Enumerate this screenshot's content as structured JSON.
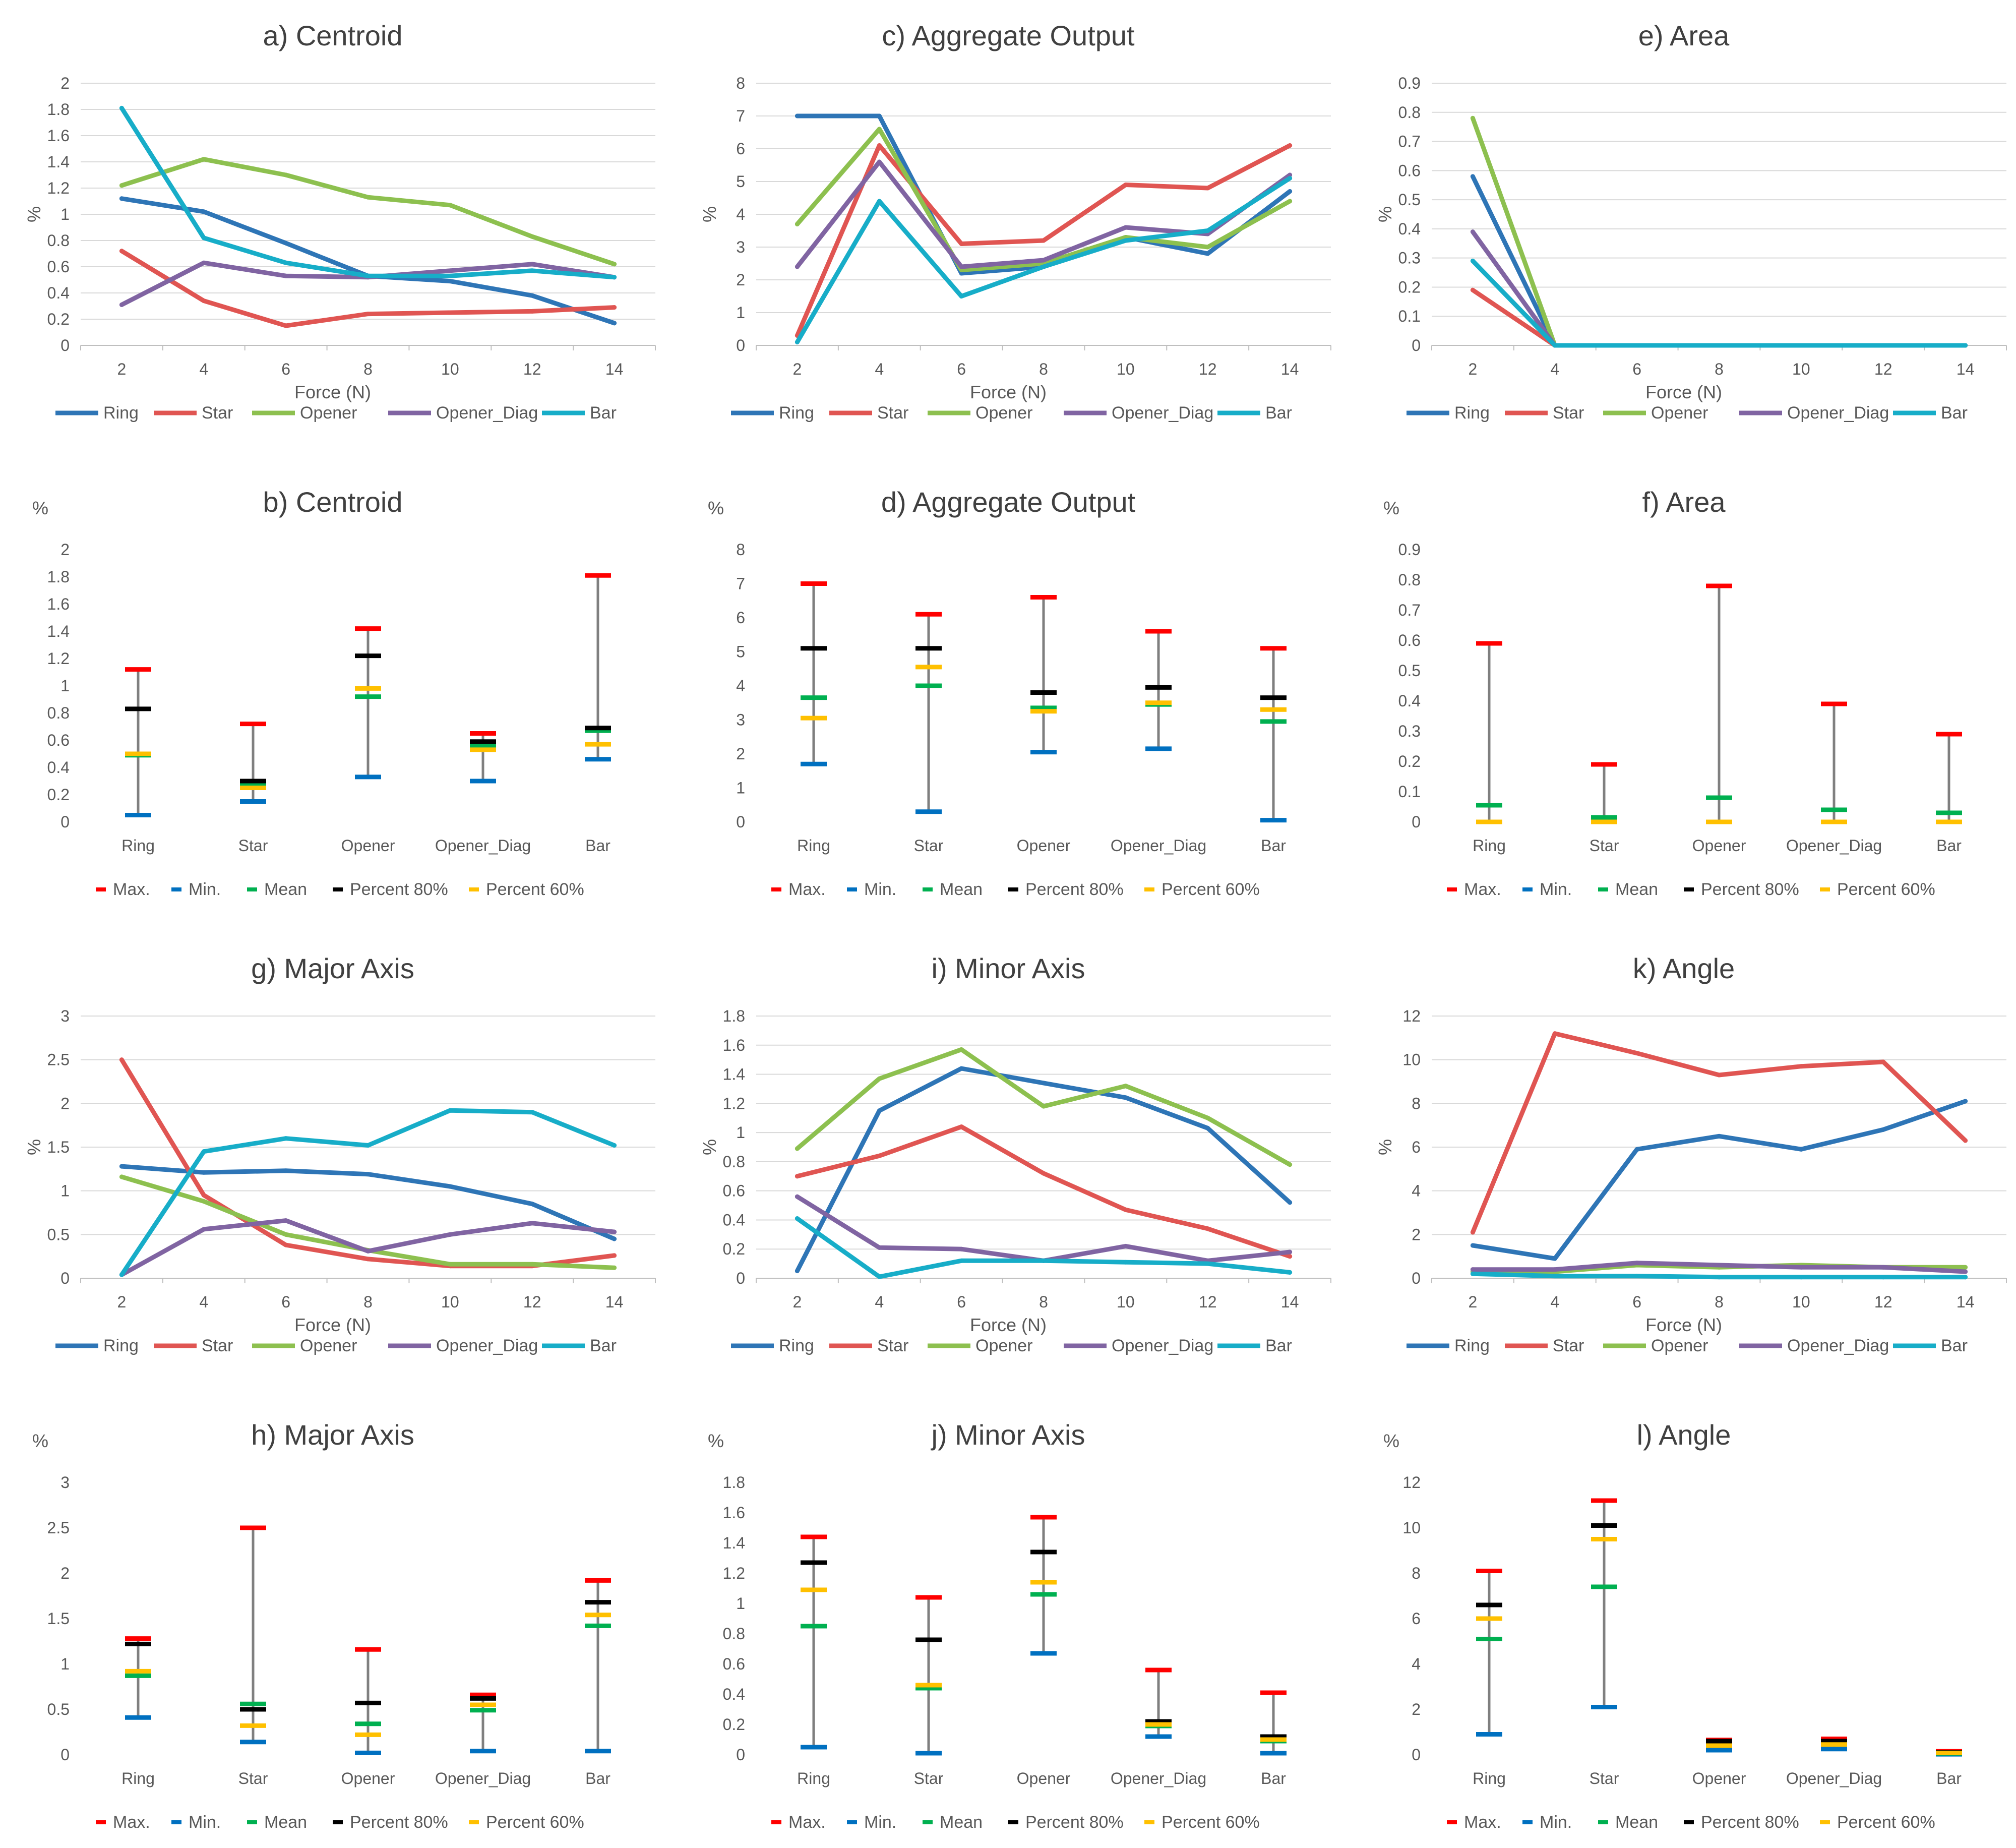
{
  "chart_data": [
    {
      "type": "line",
      "title": "a) Centroid",
      "xlabel": "Force (N)",
      "ylabel": "%",
      "ylim": [
        0,
        2
      ],
      "yticks": [
        "0",
        "0.2",
        "0.4",
        "0.6",
        "0.8",
        "1",
        "1.2",
        "1.4",
        "1.6",
        "1.8",
        "2"
      ],
      "categories": [
        "2",
        "4",
        "6",
        "8",
        "10",
        "12",
        "14"
      ],
      "grid": true,
      "legend": "bottom",
      "series": [
        {
          "name": "Ring",
          "color": "#2e75b6",
          "values": [
            1.12,
            1.02,
            0.78,
            0.53,
            0.49,
            0.38,
            0.17
          ]
        },
        {
          "name": "Star",
          "color": "#e05552",
          "values": [
            0.72,
            0.34,
            0.15,
            0.24,
            0.25,
            0.26,
            0.29
          ]
        },
        {
          "name": "Opener",
          "color": "#8dc04f",
          "values": [
            1.22,
            1.42,
            1.3,
            1.13,
            1.07,
            0.83,
            0.62
          ]
        },
        {
          "name": "Opener_Diag",
          "color": "#8064a2",
          "values": [
            0.31,
            0.63,
            0.53,
            0.52,
            0.57,
            0.62,
            0.52
          ]
        },
        {
          "name": "Bar",
          "color": "#17adc8",
          "values": [
            1.81,
            0.82,
            0.63,
            0.53,
            0.53,
            0.57,
            0.52
          ]
        }
      ]
    },
    {
      "type": "line",
      "title": "c) Aggregate Output",
      "xlabel": "Force (N)",
      "ylabel": "%",
      "ylim": [
        0,
        8
      ],
      "yticks": [
        "0",
        "1",
        "2",
        "3",
        "4",
        "5",
        "6",
        "7",
        "8"
      ],
      "categories": [
        "2",
        "4",
        "6",
        "8",
        "10",
        "12",
        "14"
      ],
      "grid": true,
      "legend": "bottom",
      "series": [
        {
          "name": "Ring",
          "color": "#2e75b6",
          "values": [
            7,
            7,
            2.2,
            2.4,
            3.3,
            2.8,
            4.7
          ]
        },
        {
          "name": "Star",
          "color": "#e05552",
          "values": [
            0.3,
            6.1,
            3.1,
            3.2,
            4.9,
            4.8,
            6.1
          ]
        },
        {
          "name": "Opener",
          "color": "#8dc04f",
          "values": [
            3.7,
            6.6,
            2.3,
            2.5,
            3.3,
            3.0,
            4.4
          ]
        },
        {
          "name": "Opener_Diag",
          "color": "#8064a2",
          "values": [
            2.4,
            5.6,
            2.4,
            2.6,
            3.6,
            3.4,
            5.2
          ]
        },
        {
          "name": "Bar",
          "color": "#17adc8",
          "values": [
            0.1,
            4.4,
            1.5,
            2.4,
            3.2,
            3.5,
            5.1
          ]
        }
      ]
    },
    {
      "type": "line",
      "title": "e) Area",
      "xlabel": "Force (N)",
      "ylabel": "%",
      "ylim": [
        0,
        0.9
      ],
      "yticks": [
        "0",
        "0.1",
        "0.2",
        "0.3",
        "0.4",
        "0.5",
        "0.6",
        "0.7",
        "0.8",
        "0.9"
      ],
      "categories": [
        "2",
        "4",
        "6",
        "8",
        "10",
        "12",
        "14"
      ],
      "grid": true,
      "legend": "bottom",
      "series": [
        {
          "name": "Ring",
          "color": "#2e75b6",
          "values": [
            0.58,
            0,
            0,
            0,
            0,
            0,
            0
          ]
        },
        {
          "name": "Star",
          "color": "#e05552",
          "values": [
            0.19,
            0,
            0,
            0,
            0,
            0,
            0
          ]
        },
        {
          "name": "Opener",
          "color": "#8dc04f",
          "values": [
            0.78,
            0,
            0,
            0,
            0,
            0,
            0
          ]
        },
        {
          "name": "Opener_Diag",
          "color": "#8064a2",
          "values": [
            0.39,
            0,
            0,
            0,
            0,
            0,
            0
          ]
        },
        {
          "name": "Bar",
          "color": "#17adc8",
          "values": [
            0.29,
            0,
            0,
            0,
            0,
            0,
            0
          ]
        }
      ]
    },
    {
      "type": "stock",
      "title": "b) Centroid",
      "ylabel": "%",
      "ylim": [
        0,
        2
      ],
      "yticks": [
        "0",
        "0.2",
        "0.4",
        "0.6",
        "0.8",
        "1",
        "1.2",
        "1.4",
        "1.6",
        "1.8",
        "2"
      ],
      "categories": [
        "Ring",
        "Star",
        "Opener",
        "Opener_Diag",
        "Bar"
      ],
      "legend": "bottom",
      "markers": [
        {
          "name": "Max.",
          "color": "#ff0000",
          "values": [
            1.12,
            0.72,
            1.42,
            0.65,
            1.81
          ]
        },
        {
          "name": "Min.",
          "color": "#0070c0",
          "values": [
            0.05,
            0.15,
            0.33,
            0.3,
            0.46
          ]
        },
        {
          "name": "Mean",
          "color": "#00b050",
          "values": [
            0.49,
            0.27,
            0.92,
            0.56,
            0.67
          ]
        },
        {
          "name": "Percent 80%",
          "color": "#000000",
          "values": [
            0.83,
            0.3,
            1.22,
            0.59,
            0.69
          ]
        },
        {
          "name": "Percent 60%",
          "color": "#ffc000",
          "values": [
            0.5,
            0.25,
            0.98,
            0.53,
            0.57
          ]
        }
      ]
    },
    {
      "type": "stock",
      "title": "d) Aggregate Output",
      "ylabel": "%",
      "ylim": [
        0,
        8
      ],
      "yticks": [
        "0",
        "1",
        "2",
        "3",
        "4",
        "5",
        "6",
        "7",
        "8"
      ],
      "categories": [
        "Ring",
        "Star",
        "Opener",
        "Opener_Diag",
        "Bar"
      ],
      "legend": "bottom",
      "markers": [
        {
          "name": "Max.",
          "color": "#ff0000",
          "values": [
            7,
            6.1,
            6.6,
            5.6,
            5.1
          ]
        },
        {
          "name": "Min.",
          "color": "#0070c0",
          "values": [
            1.7,
            0.3,
            2.05,
            2.15,
            0.05
          ]
        },
        {
          "name": "Mean",
          "color": "#00b050",
          "values": [
            3.65,
            4.0,
            3.35,
            3.45,
            2.95
          ]
        },
        {
          "name": "Percent 80%",
          "color": "#000000",
          "values": [
            5.1,
            5.1,
            3.8,
            3.95,
            3.65
          ]
        },
        {
          "name": "Percent 60%",
          "color": "#ffc000",
          "values": [
            3.05,
            4.55,
            3.25,
            3.5,
            3.3
          ]
        }
      ]
    },
    {
      "type": "stock",
      "title": "f) Area",
      "ylabel": "%",
      "ylim": [
        0,
        0.9
      ],
      "yticks": [
        "0",
        "0.1",
        "0.2",
        "0.3",
        "0.4",
        "0.5",
        "0.6",
        "0.7",
        "0.8",
        "0.9"
      ],
      "categories": [
        "Ring",
        "Star",
        "Opener",
        "Opener_Diag",
        "Bar"
      ],
      "legend": "bottom",
      "markers": [
        {
          "name": "Max.",
          "color": "#ff0000",
          "values": [
            0.59,
            0.19,
            0.78,
            0.39,
            0.29
          ]
        },
        {
          "name": "Min.",
          "color": "#0070c0",
          "values": [
            0,
            0,
            0,
            0,
            0
          ]
        },
        {
          "name": "Mean",
          "color": "#00b050",
          "values": [
            0.055,
            0.015,
            0.08,
            0.04,
            0.03
          ]
        },
        {
          "name": "Percent 80%",
          "color": "#000000",
          "values": [
            0,
            0,
            0,
            0,
            0
          ]
        },
        {
          "name": "Percent 60%",
          "color": "#ffc000",
          "values": [
            0,
            0,
            0,
            0,
            0
          ]
        }
      ]
    },
    {
      "type": "line",
      "title": "g) Major Axis",
      "xlabel": "Force (N)",
      "ylabel": "%",
      "ylim": [
        0,
        3
      ],
      "yticks": [
        "0",
        "0.5",
        "1",
        "1.5",
        "2",
        "2.5",
        "3"
      ],
      "categories": [
        "2",
        "4",
        "6",
        "8",
        "10",
        "12",
        "14"
      ],
      "grid": true,
      "legend": "bottom",
      "series": [
        {
          "name": "Ring",
          "color": "#2e75b6",
          "values": [
            1.28,
            1.21,
            1.23,
            1.19,
            1.05,
            0.85,
            0.45
          ]
        },
        {
          "name": "Star",
          "color": "#e05552",
          "values": [
            2.5,
            0.95,
            0.38,
            0.22,
            0.14,
            0.14,
            0.26
          ]
        },
        {
          "name": "Opener",
          "color": "#8dc04f",
          "values": [
            1.16,
            0.88,
            0.5,
            0.32,
            0.16,
            0.16,
            0.12
          ]
        },
        {
          "name": "Opener_Diag",
          "color": "#8064a2",
          "values": [
            0.04,
            0.56,
            0.66,
            0.31,
            0.5,
            0.63,
            0.53
          ]
        },
        {
          "name": "Bar",
          "color": "#17adc8",
          "values": [
            0.04,
            1.45,
            1.6,
            1.52,
            1.92,
            1.9,
            1.52
          ]
        }
      ]
    },
    {
      "type": "line",
      "title": "i) Minor Axis",
      "xlabel": "Force (N)",
      "ylabel": "%",
      "ylim": [
        0,
        1.8
      ],
      "yticks": [
        "0",
        "0.2",
        "0.4",
        "0.6",
        "0.8",
        "1",
        "1.2",
        "1.4",
        "1.6",
        "1.8"
      ],
      "categories": [
        "2",
        "4",
        "6",
        "8",
        "10",
        "12",
        "14"
      ],
      "grid": true,
      "legend": "bottom",
      "series": [
        {
          "name": "Ring",
          "color": "#2e75b6",
          "values": [
            0.05,
            1.15,
            1.44,
            1.34,
            1.24,
            1.03,
            0.52
          ]
        },
        {
          "name": "Star",
          "color": "#e05552",
          "values": [
            0.7,
            0.84,
            1.04,
            0.72,
            0.47,
            0.34,
            0.15
          ]
        },
        {
          "name": "Opener",
          "color": "#8dc04f",
          "values": [
            0.89,
            1.37,
            1.57,
            1.18,
            1.32,
            1.1,
            0.78
          ]
        },
        {
          "name": "Opener_Diag",
          "color": "#8064a2",
          "values": [
            0.56,
            0.21,
            0.2,
            0.12,
            0.22,
            0.12,
            0.18
          ]
        },
        {
          "name": "Bar",
          "color": "#17adc8",
          "values": [
            0.41,
            0.01,
            0.12,
            0.12,
            0.11,
            0.1,
            0.04
          ]
        }
      ]
    },
    {
      "type": "line",
      "title": "k) Angle",
      "xlabel": "Force (N)",
      "ylabel": "%",
      "ylim": [
        0,
        12
      ],
      "yticks": [
        "0",
        "2",
        "4",
        "6",
        "8",
        "10",
        "12"
      ],
      "categories": [
        "2",
        "4",
        "6",
        "8",
        "10",
        "12",
        "14"
      ],
      "grid": true,
      "legend": "bottom",
      "series": [
        {
          "name": "Ring",
          "color": "#2e75b6",
          "values": [
            1.5,
            0.9,
            5.9,
            6.5,
            5.9,
            6.8,
            8.1
          ]
        },
        {
          "name": "Star",
          "color": "#e05552",
          "values": [
            2.1,
            11.2,
            10.3,
            9.3,
            9.7,
            9.9,
            6.3
          ]
        },
        {
          "name": "Opener",
          "color": "#8dc04f",
          "values": [
            0.3,
            0.3,
            0.6,
            0.5,
            0.6,
            0.5,
            0.5
          ]
        },
        {
          "name": "Opener_Diag",
          "color": "#8064a2",
          "values": [
            0.4,
            0.4,
            0.7,
            0.6,
            0.5,
            0.5,
            0.3
          ]
        },
        {
          "name": "Bar",
          "color": "#17adc8",
          "values": [
            0.2,
            0.1,
            0.1,
            0.05,
            0.05,
            0.05,
            0.05
          ]
        }
      ]
    },
    {
      "type": "stock",
      "title": "h) Major Axis",
      "ylabel": "%",
      "ylim": [
        0,
        3
      ],
      "yticks": [
        "0",
        "0.5",
        "1",
        "1.5",
        "2",
        "2.5",
        "3"
      ],
      "categories": [
        "Ring",
        "Star",
        "Opener",
        "Opener_Diag",
        "Bar"
      ],
      "legend": "bottom",
      "markers": [
        {
          "name": "Max.",
          "color": "#ff0000",
          "values": [
            1.28,
            2.5,
            1.16,
            0.66,
            1.92
          ]
        },
        {
          "name": "Min.",
          "color": "#0070c0",
          "values": [
            0.41,
            0.14,
            0.02,
            0.04,
            0.04
          ]
        },
        {
          "name": "Mean",
          "color": "#00b050",
          "values": [
            0.87,
            0.56,
            0.34,
            0.49,
            1.42
          ]
        },
        {
          "name": "Percent 80%",
          "color": "#000000",
          "values": [
            1.22,
            0.5,
            0.57,
            0.62,
            1.68
          ]
        },
        {
          "name": "Percent 60%",
          "color": "#ffc000",
          "values": [
            0.92,
            0.32,
            0.22,
            0.55,
            1.54
          ]
        }
      ]
    },
    {
      "type": "stock",
      "title": "j) Minor Axis",
      "ylabel": "%",
      "ylim": [
        0,
        1.8
      ],
      "yticks": [
        "0",
        "0.2",
        "0.4",
        "0.6",
        "0.8",
        "1",
        "1.2",
        "1.4",
        "1.6",
        "1.8"
      ],
      "categories": [
        "Ring",
        "Star",
        "Opener",
        "Opener_Diag",
        "Bar"
      ],
      "legend": "bottom",
      "markers": [
        {
          "name": "Max.",
          "color": "#ff0000",
          "values": [
            1.44,
            1.04,
            1.57,
            0.56,
            0.41
          ]
        },
        {
          "name": "Min.",
          "color": "#0070c0",
          "values": [
            0.05,
            0.01,
            0.67,
            0.12,
            0.01
          ]
        },
        {
          "name": "Mean",
          "color": "#00b050",
          "values": [
            0.85,
            0.44,
            1.06,
            0.19,
            0.09
          ]
        },
        {
          "name": "Percent 80%",
          "color": "#000000",
          "values": [
            1.27,
            0.76,
            1.34,
            0.22,
            0.12
          ]
        },
        {
          "name": "Percent 60%",
          "color": "#ffc000",
          "values": [
            1.09,
            0.46,
            1.14,
            0.2,
            0.1
          ]
        }
      ]
    },
    {
      "type": "stock",
      "title": "l) Angle",
      "ylabel": "%",
      "ylim": [
        0,
        12
      ],
      "yticks": [
        "0",
        "2",
        "4",
        "6",
        "8",
        "10",
        "12"
      ],
      "categories": [
        "Ring",
        "Star",
        "Opener",
        "Opener_Diag",
        "Bar"
      ],
      "legend": "bottom",
      "markers": [
        {
          "name": "Max.",
          "color": "#ff0000",
          "values": [
            8.1,
            11.2,
            0.65,
            0.7,
            0.15
          ]
        },
        {
          "name": "Min.",
          "color": "#0070c0",
          "values": [
            0.9,
            2.1,
            0.2,
            0.25,
            0.02
          ]
        },
        {
          "name": "Mean",
          "color": "#00b050",
          "values": [
            5.1,
            7.4,
            0.45,
            0.5,
            0.06
          ]
        },
        {
          "name": "Percent 80%",
          "color": "#000000",
          "values": [
            6.6,
            10.1,
            0.6,
            0.6,
            0.1
          ]
        },
        {
          "name": "Percent 60%",
          "color": "#ffc000",
          "values": [
            6.0,
            9.5,
            0.4,
            0.45,
            0.08
          ]
        }
      ]
    }
  ]
}
